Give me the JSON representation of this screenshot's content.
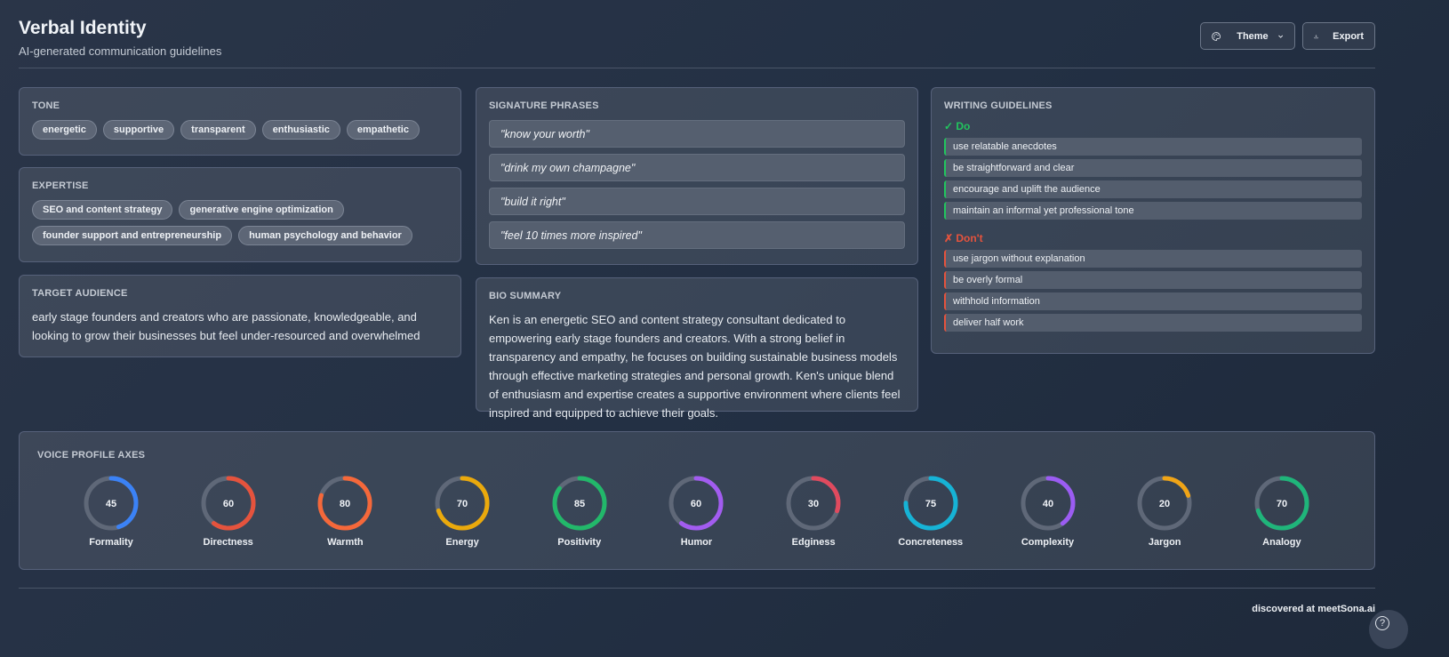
{
  "header": {
    "title": "Verbal Identity",
    "subtitle": "AI-generated communication guidelines",
    "theme_label": "Theme",
    "export_label": "Export"
  },
  "tone": {
    "title": "TONE",
    "items": [
      "energetic",
      "supportive",
      "transparent",
      "enthusiastic",
      "empathetic"
    ]
  },
  "expertise": {
    "title": "EXPERTISE",
    "items": [
      "SEO and content strategy",
      "generative engine optimization",
      "founder support and entrepreneurship",
      "human psychology and behavior"
    ]
  },
  "audience": {
    "title": "TARGET AUDIENCE",
    "text": "early stage founders and creators who are passionate, knowledgeable, and looking to grow their businesses but feel under-resourced and overwhelmed"
  },
  "phrases": {
    "title": "SIGNATURE PHRASES",
    "items": [
      "\"know your worth\"",
      "\"drink my own champagne\"",
      "\"build it right\"",
      "\"feel 10 times more inspired\""
    ]
  },
  "bio": {
    "title": "BIO SUMMARY",
    "text": "Ken is an energetic SEO and content strategy consultant dedicated to empowering early stage founders and creators. With a strong belief in transparency and empathy, he focuses on building sustainable business models through effective marketing strategies and personal growth. Ken's unique blend of enthusiasm and expertise creates a supportive environment where clients feel inspired and equipped to achieve their goals."
  },
  "guidelines": {
    "title": "WRITING GUIDELINES",
    "do_label": "✓ Do",
    "do_color": "#22c55e",
    "do": [
      "use relatable anecdotes",
      "be straightforward and clear",
      "encourage and uplift the audience",
      "maintain an informal yet professional tone"
    ],
    "dont_label": "✗ Don't",
    "dont_color": "#e5533d",
    "dont": [
      "use jargon without explanation",
      "be overly formal",
      "withhold information",
      "deliver half work"
    ]
  },
  "voice": {
    "title": "VOICE PROFILE AXES",
    "axes": [
      {
        "label": "Formality",
        "value": 45,
        "color": "#3b82f6"
      },
      {
        "label": "Directness",
        "value": 60,
        "color": "#e5533d"
      },
      {
        "label": "Warmth",
        "value": 80,
        "color": "#f5683a"
      },
      {
        "label": "Energy",
        "value": 70,
        "color": "#eaa90c"
      },
      {
        "label": "Positivity",
        "value": 85,
        "color": "#22b86a"
      },
      {
        "label": "Humor",
        "value": 60,
        "color": "#a25cf0"
      },
      {
        "label": "Edginess",
        "value": 30,
        "color": "#e04a5e"
      },
      {
        "label": "Concreteness",
        "value": 75,
        "color": "#16b3d6"
      },
      {
        "label": "Complexity",
        "value": 40,
        "color": "#9b5cf2"
      },
      {
        "label": "Jargon",
        "value": 20,
        "color": "#f0a416"
      },
      {
        "label": "Analogy",
        "value": 70,
        "color": "#1fb57a"
      }
    ]
  },
  "footer": {
    "text": "discovered at meetSona.ai",
    "help": "?"
  }
}
